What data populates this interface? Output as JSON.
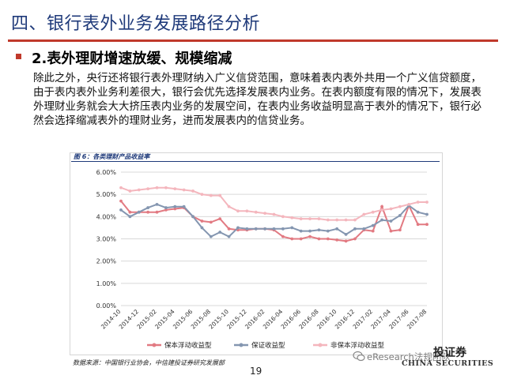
{
  "slide": {
    "title": "四、银行表外业务发展路径分析",
    "subtitle": "2.表外理财增速放缓、规模缩减",
    "body": "除此之外，央行还将银行表外理财纳入广义信贷范围，意味着表内表外共用一个广义信贷额度，由于表内表外业务利差很大，银行会优先选择发展表内业务。在表内额度有限的情况下，发展表外理财业务就会大大挤压表内业务的发展空间，在表内业务收益明显高于表外的情况下，银行必然会选择缩减表外的理财业务，进而发展表内的信贷业务。",
    "figure_caption": "图 6：各类理财产品收益率",
    "source": "数据来源：中国银行业协会，中信建投证券研究发展部",
    "page_number": "19",
    "logo_cn": "投证券",
    "logo_en": "CHINA SECURITIES",
    "watermark": "eResearch法规团队"
  },
  "colors": {
    "title": "#1f3a7a",
    "accent": "#c0392b",
    "series_floating_protected": "#e27a82",
    "series_guaranteed": "#8496b0",
    "series_nonprotected": "#f4b6bd"
  },
  "chart_data": {
    "type": "line",
    "title": "",
    "xlabel": "",
    "ylabel": "",
    "ylim": [
      0,
      6
    ],
    "y_ticks": [
      "0.00%",
      "1.00%",
      "2.00%",
      "3.00%",
      "4.00%",
      "5.00%",
      "6.00%"
    ],
    "x_tick_labels": [
      "2014-10",
      "2014-12",
      "2015-02",
      "2015-04",
      "2015-06",
      "2015-08",
      "2015-10",
      "2015-12",
      "2016-02",
      "2016-04",
      "2016-06",
      "2016-08",
      "2016-10",
      "2016-12",
      "2017-02",
      "2017-04",
      "2017-06",
      "2017-08"
    ],
    "grid": "horizontal",
    "legend": "bottom",
    "x": [
      "2014-10",
      "2014-11",
      "2014-12",
      "2015-01",
      "2015-02",
      "2015-03",
      "2015-04",
      "2015-05",
      "2015-06",
      "2015-07",
      "2015-08",
      "2015-09",
      "2015-10",
      "2015-11",
      "2015-12",
      "2016-01",
      "2016-02",
      "2016-03",
      "2016-04",
      "2016-05",
      "2016-06",
      "2016-07",
      "2016-08",
      "2016-09",
      "2016-10",
      "2016-11",
      "2016-12",
      "2017-01",
      "2017-02",
      "2017-03",
      "2017-04",
      "2017-05",
      "2017-06",
      "2017-07",
      "2017-08"
    ],
    "series": [
      {
        "name": "保本浮动收益型",
        "color": "#e27a82",
        "values": [
          4.7,
          4.2,
          4.2,
          4.2,
          4.2,
          4.3,
          4.35,
          4.4,
          4.0,
          3.8,
          3.75,
          3.9,
          3.45,
          3.4,
          3.4,
          3.45,
          3.45,
          3.4,
          3.1,
          3.0,
          3.0,
          3.1,
          3.0,
          3.0,
          2.95,
          2.9,
          3.0,
          3.4,
          3.35,
          4.45,
          3.35,
          3.4,
          4.5,
          3.65,
          3.65
        ]
      },
      {
        "name": "保证收益型",
        "color": "#8496b0",
        "values": [
          4.3,
          4.0,
          4.2,
          4.4,
          4.55,
          4.4,
          4.45,
          4.45,
          4.0,
          3.5,
          3.1,
          3.3,
          3.1,
          3.5,
          3.45,
          3.45,
          3.45,
          3.45,
          3.45,
          3.5,
          3.35,
          3.35,
          3.4,
          3.35,
          3.45,
          3.2,
          3.45,
          3.45,
          3.6,
          3.85,
          3.8,
          4.05,
          4.5,
          4.2,
          4.1
        ]
      },
      {
        "name": "非保本浮动收益型",
        "color": "#f4b6bd",
        "values": [
          5.3,
          5.15,
          5.2,
          5.25,
          5.3,
          5.3,
          5.25,
          5.2,
          5.15,
          5.0,
          4.95,
          4.95,
          4.45,
          4.25,
          4.25,
          4.2,
          4.15,
          4.1,
          4.0,
          3.95,
          3.9,
          3.9,
          3.9,
          3.85,
          3.85,
          3.85,
          3.85,
          4.1,
          4.2,
          4.3,
          4.35,
          4.45,
          4.55,
          4.65,
          4.65
        ]
      }
    ]
  }
}
